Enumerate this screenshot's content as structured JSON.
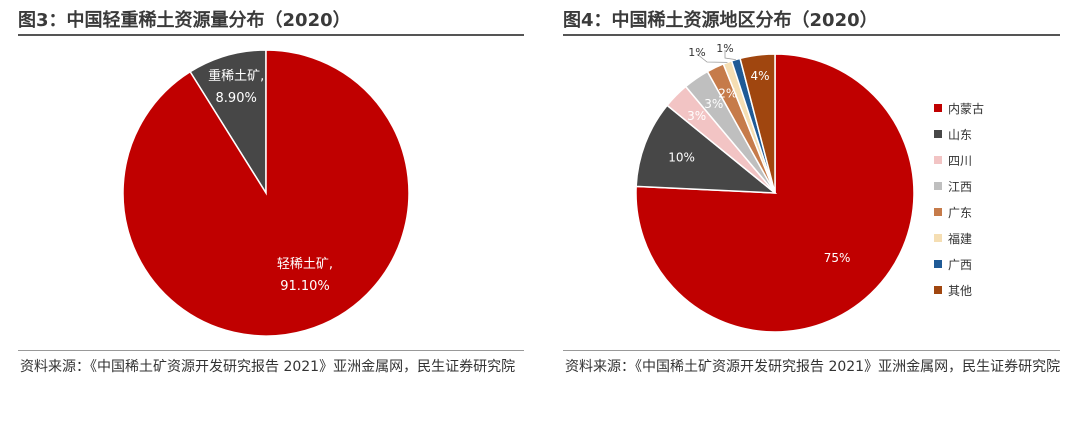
{
  "figures": [
    {
      "title": "图3：中国轻重稀土资源量分布（2020）",
      "source": "资料来源：《中国稀土矿资源开发研究报告 2021》亚洲金属网，民生证券研究院"
    },
    {
      "title": "图4：中国稀土资源地区分布（2020）",
      "source": "资料来源：《中国稀土矿资源开发研究报告 2021》亚洲金属网，民生证券研究院"
    }
  ],
  "chart_data": [
    {
      "type": "pie",
      "title": "图3：中国轻重稀土资源量分布（2020）",
      "slices": [
        {
          "label": "重稀土矿",
          "value": 8.9,
          "display": "8.90%",
          "color": "#474747"
        },
        {
          "label": "轻稀土矿",
          "value": 91.1,
          "display": "91.10%",
          "color": "#c00000"
        }
      ]
    },
    {
      "type": "pie",
      "title": "图4：中国稀土资源地区分布（2020）",
      "legend_position": "right",
      "slices": [
        {
          "label": "内蒙古",
          "value": 75,
          "display": "75%",
          "color": "#c00000"
        },
        {
          "label": "山东",
          "value": 10,
          "display": "10%",
          "color": "#474747"
        },
        {
          "label": "四川",
          "value": 3,
          "display": "3%",
          "color": "#f2c4c4"
        },
        {
          "label": "江西",
          "value": 3,
          "display": "3%",
          "color": "#bfbfbf"
        },
        {
          "label": "广东",
          "value": 2,
          "display": "2%",
          "color": "#c67b4a"
        },
        {
          "label": "福建",
          "value": 1,
          "display": "1%",
          "color": "#f5deb3"
        },
        {
          "label": "广西",
          "value": 1,
          "display": "1%",
          "color": "#1f5a96"
        },
        {
          "label": "其他",
          "value": 4,
          "display": "4%",
          "color": "#a0460f"
        }
      ]
    }
  ]
}
